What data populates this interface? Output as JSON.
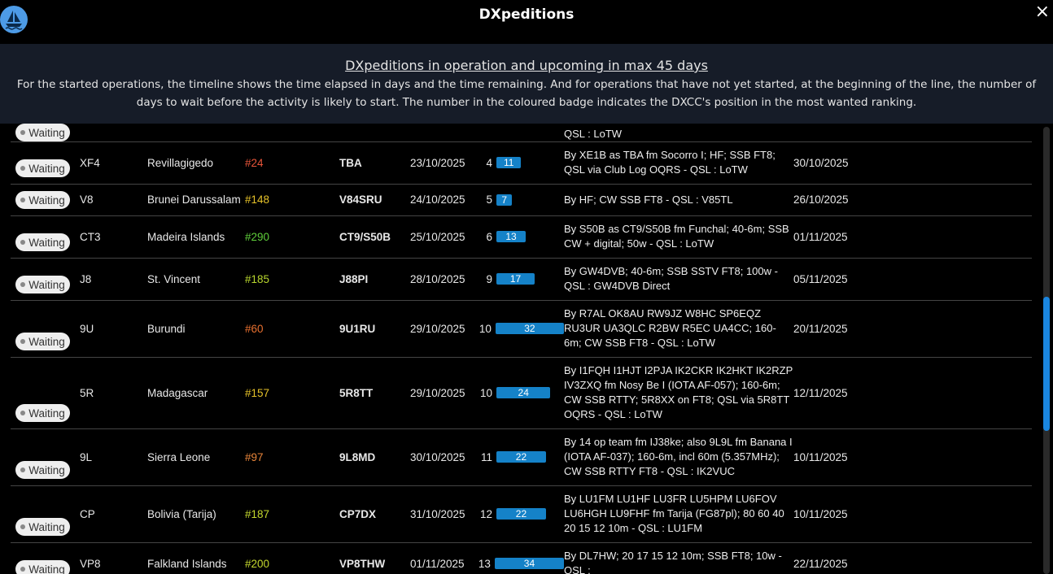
{
  "header": {
    "title": "DXpeditions",
    "close": "×"
  },
  "info": {
    "heading": "DXpeditions in operation and upcoming in max 45 days",
    "text": "For the started operations, the timeline shows the time elapsed in days and the time remaining. And for operations that have not yet started, at the beginning of the line, the number of days to wait before the activity is likely to start. The number in the coloured badge indicates the DXCC's position in the most wanted ranking."
  },
  "table": {
    "rows": [
      {
        "status": "Waiting",
        "notes": "QSL : LoTW"
      },
      {
        "status": "Waiting",
        "prefix": "XF4",
        "entity": "Revillagigedo",
        "rank": "#24",
        "rank_color": "#e8553a",
        "callsign": "TBA",
        "start": "23/10/2025",
        "end": "30/10/2025",
        "days_to_start": 4,
        "duration": 11,
        "notes": "By XE1B as TBA fm Socorro I; HF; SSB FT8; QSL via Club Log OQRS - QSL : LoTW"
      },
      {
        "status": "Waiting",
        "prefix": "V8",
        "entity": "Brunei Darussalam",
        "rank": "#148",
        "rank_color": "#e6c229",
        "callsign": "V84SRU",
        "start": "24/10/2025",
        "end": "26/10/2025",
        "days_to_start": 5,
        "duration": 7,
        "notes": "By HF; CW SSB FT8 - QSL : V85TL"
      },
      {
        "status": "Waiting",
        "prefix": "CT3",
        "entity": "Madeira Islands",
        "rank": "#290",
        "rank_color": "#5fcf3a",
        "callsign": "CT9/S50B",
        "start": "25/10/2025",
        "end": "01/11/2025",
        "days_to_start": 6,
        "duration": 13,
        "notes": "By S50B as CT9/S50B fm Funchal; 40-6m; SSB CW + digital; 50w - QSL : LoTW"
      },
      {
        "status": "Waiting",
        "prefix": "J8",
        "entity": "St. Vincent",
        "rank": "#185",
        "rank_color": "#b9d72e",
        "callsign": "J88PI",
        "start": "28/10/2025",
        "end": "05/11/2025",
        "days_to_start": 9,
        "duration": 17,
        "notes": "By GW4DVB; 40-6m; SSB SSTV FT8; 100w - QSL : GW4DVB Direct"
      },
      {
        "status": "Waiting",
        "prefix": "9U",
        "entity": "Burundi",
        "rank": "#60",
        "rank_color": "#e8702f",
        "callsign": "9U1RU",
        "start": "29/10/2025",
        "end": "20/11/2025",
        "days_to_start": 10,
        "duration": 32,
        "notes": "By R7AL OK8AU RW9JZ W8HC SP6EQZ RU3UR UA3QLC R2BW R5EC UA4CC; 160-6m; CW SSB FT8 - QSL : LoTW"
      },
      {
        "status": "Waiting",
        "prefix": "5R",
        "entity": "Madagascar",
        "rank": "#157",
        "rank_color": "#e6c229",
        "callsign": "5R8TT",
        "start": "29/10/2025",
        "end": "12/11/2025",
        "days_to_start": 10,
        "duration": 24,
        "notes": "By I1FQH I1HJT I2PJA IK2CKR IK2HKT IK2RZP IV3ZXQ fm Nosy Be I (IOTA AF-057); 160-6m; CW SSB RTTY; 5R8XX on FT8; QSL via 5R8TT OQRS - QSL : LoTW"
      },
      {
        "status": "Waiting",
        "prefix": "9L",
        "entity": "Sierra Leone",
        "rank": "#97",
        "rank_color": "#e8853a",
        "callsign": "9L8MD",
        "start": "30/10/2025",
        "end": "10/11/2025",
        "days_to_start": 11,
        "duration": 22,
        "notes": "By 14 op team fm IJ38ke; also 9L9L fm Banana I (IOTA AF-037); 160-6m, incl 60m (5.357MHz); CW SSB RTTY FT8 - QSL : IK2VUC"
      },
      {
        "status": "Waiting",
        "prefix": "CP",
        "entity": "Bolivia (Tarija)",
        "rank": "#187",
        "rank_color": "#c4d82e",
        "callsign": "CP7DX",
        "start": "31/10/2025",
        "end": "10/11/2025",
        "days_to_start": 12,
        "duration": 22,
        "notes": "By LU1FM LU1HF LU3FR LU5HPM LU6FOV LU6HGH LU9FHF fm Tarija (FG87pl); 80 60 40 20 15 12 10m - QSL : LU1FM"
      },
      {
        "status": "Waiting",
        "prefix": "VP8",
        "entity": "Falkland Islands",
        "rank": "#200",
        "rank_color": "#c4d82e",
        "callsign": "VP8THW",
        "start": "01/11/2025",
        "end": "22/11/2025",
        "days_to_start": 13,
        "duration": 34,
        "notes": "By DL7HW; 20 17 15 12 10m; SSB FT8; 10w - QSL :"
      }
    ]
  }
}
